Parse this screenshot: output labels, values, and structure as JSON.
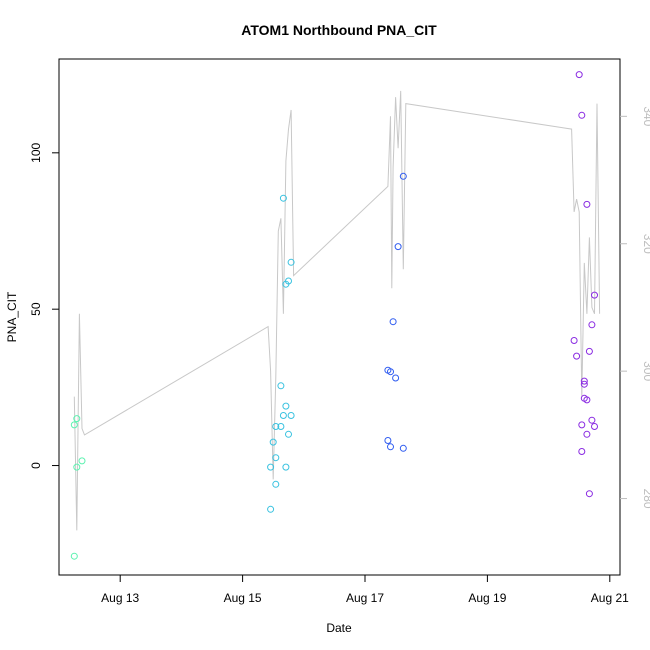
{
  "chart_data": {
    "type": "scatter",
    "title": "ATOM1 Northbound PNA_CIT",
    "xlabel": "Date",
    "ylabel": "PNA_CIT",
    "xlim": [
      "2016-08-12T00:00",
      "2016-08-21T04:00"
    ],
    "ylim": [
      -35,
      130
    ],
    "x_ticks": [
      {
        "value": "2016-08-13",
        "label": "Aug 13"
      },
      {
        "value": "2016-08-15",
        "label": "Aug 15"
      },
      {
        "value": "2016-08-17",
        "label": "Aug 17"
      },
      {
        "value": "2016-08-19",
        "label": "Aug 19"
      },
      {
        "value": "2016-08-21",
        "label": "Aug 21"
      }
    ],
    "y_ticks": [
      0,
      50,
      100
    ],
    "y2lim": [
      268,
      349
    ],
    "y2_ticks": [
      280,
      300,
      320,
      340
    ],
    "grid": false,
    "legend": "none",
    "points": [
      {
        "x": "2016-08-12T06:00",
        "y": -29,
        "color": "#5cf2b0"
      },
      {
        "x": "2016-08-12T06:00",
        "y": 13,
        "color": "#5cf2b0"
      },
      {
        "x": "2016-08-12T07:00",
        "y": -0.5,
        "color": "#5cf2b0"
      },
      {
        "x": "2016-08-12T07:00",
        "y": 15,
        "color": "#5cf2b0"
      },
      {
        "x": "2016-08-12T09:00",
        "y": 1.5,
        "color": "#5cf2b0"
      },
      {
        "x": "2016-08-15T11:00",
        "y": -14,
        "color": "#39c2e0"
      },
      {
        "x": "2016-08-15T11:00",
        "y": -0.5,
        "color": "#39c2e0"
      },
      {
        "x": "2016-08-15T12:00",
        "y": 7.5,
        "color": "#39c2e0"
      },
      {
        "x": "2016-08-15T13:00",
        "y": 12.5,
        "color": "#39c2e0"
      },
      {
        "x": "2016-08-15T13:00",
        "y": 2.5,
        "color": "#39c2e0"
      },
      {
        "x": "2016-08-15T13:00",
        "y": -6,
        "color": "#39c2e0"
      },
      {
        "x": "2016-08-15T15:00",
        "y": 25.5,
        "color": "#39c2e0"
      },
      {
        "x": "2016-08-15T15:00",
        "y": 12.5,
        "color": "#39c2e0"
      },
      {
        "x": "2016-08-15T16:00",
        "y": 85.5,
        "color": "#39c2e0"
      },
      {
        "x": "2016-08-15T16:00",
        "y": 16,
        "color": "#39c2e0"
      },
      {
        "x": "2016-08-15T17:00",
        "y": 58,
        "color": "#39c2e0"
      },
      {
        "x": "2016-08-15T17:00",
        "y": 19,
        "color": "#39c2e0"
      },
      {
        "x": "2016-08-15T17:00",
        "y": -0.5,
        "color": "#39c2e0"
      },
      {
        "x": "2016-08-15T18:00",
        "y": 59,
        "color": "#39c2e0"
      },
      {
        "x": "2016-08-15T18:00",
        "y": 10,
        "color": "#39c2e0"
      },
      {
        "x": "2016-08-15T19:00",
        "y": 65,
        "color": "#39c2e0"
      },
      {
        "x": "2016-08-15T19:00",
        "y": 16,
        "color": "#39c2e0"
      },
      {
        "x": "2016-08-17T09:00",
        "y": 30.5,
        "color": "#2f5cf0"
      },
      {
        "x": "2016-08-17T09:00",
        "y": 8,
        "color": "#2f5cf0"
      },
      {
        "x": "2016-08-17T10:00",
        "y": 30,
        "color": "#2f5cf0"
      },
      {
        "x": "2016-08-17T10:00",
        "y": 6,
        "color": "#2f5cf0"
      },
      {
        "x": "2016-08-17T11:00",
        "y": 46,
        "color": "#2f5cf0"
      },
      {
        "x": "2016-08-17T12:00",
        "y": 28,
        "color": "#2f5cf0"
      },
      {
        "x": "2016-08-17T13:00",
        "y": 70,
        "color": "#2f5cf0"
      },
      {
        "x": "2016-08-17T15:00",
        "y": 92.5,
        "color": "#2f5cf0"
      },
      {
        "x": "2016-08-17T15:00",
        "y": 5.5,
        "color": "#2f5cf0"
      },
      {
        "x": "2016-08-20T10:00",
        "y": 40,
        "color": "#8a2be2"
      },
      {
        "x": "2016-08-20T11:00",
        "y": 35,
        "color": "#8a2be2"
      },
      {
        "x": "2016-08-20T12:00",
        "y": 125,
        "color": "#8a2be2"
      },
      {
        "x": "2016-08-20T13:00",
        "y": 112,
        "color": "#8a2be2"
      },
      {
        "x": "2016-08-20T13:00",
        "y": 13,
        "color": "#8a2be2"
      },
      {
        "x": "2016-08-20T13:00",
        "y": 4.5,
        "color": "#8a2be2"
      },
      {
        "x": "2016-08-20T14:00",
        "y": 27,
        "color": "#8a2be2"
      },
      {
        "x": "2016-08-20T14:00",
        "y": 21.5,
        "color": "#8a2be2"
      },
      {
        "x": "2016-08-20T14:00",
        "y": 26,
        "color": "#8a2be2"
      },
      {
        "x": "2016-08-20T15:00",
        "y": 83.5,
        "color": "#8a2be2"
      },
      {
        "x": "2016-08-20T15:00",
        "y": 21,
        "color": "#8a2be2"
      },
      {
        "x": "2016-08-20T15:00",
        "y": 10,
        "color": "#8a2be2"
      },
      {
        "x": "2016-08-20T16:00",
        "y": 36.5,
        "color": "#8a2be2"
      },
      {
        "x": "2016-08-20T16:00",
        "y": -9,
        "color": "#8a2be2"
      },
      {
        "x": "2016-08-20T17:00",
        "y": 45,
        "color": "#8a2be2"
      },
      {
        "x": "2016-08-20T17:00",
        "y": 14.5,
        "color": "#8a2be2"
      },
      {
        "x": "2016-08-20T18:00",
        "y": 54.5,
        "color": "#8a2be2"
      },
      {
        "x": "2016-08-20T18:00",
        "y": 12.5,
        "color": "#8a2be2"
      }
    ],
    "line_series": {
      "axis": "right",
      "color": "#c8c8c8",
      "points": [
        [
          "2016-08-12T06:00",
          296
        ],
        [
          "2016-08-12T07:00",
          275
        ],
        [
          "2016-08-12T08:00",
          309
        ],
        [
          "2016-08-12T09:00",
          291
        ],
        [
          "2016-08-12T10:00",
          290
        ],
        [
          "2016-08-15T10:00",
          307
        ],
        [
          "2016-08-15T11:00",
          300
        ],
        [
          "2016-08-15T12:00",
          283
        ],
        [
          "2016-08-15T13:00",
          299
        ],
        [
          "2016-08-15T14:00",
          322
        ],
        [
          "2016-08-15T15:00",
          324
        ],
        [
          "2016-08-15T16:00",
          309
        ],
        [
          "2016-08-15T17:00",
          333
        ],
        [
          "2016-08-15T18:00",
          338
        ],
        [
          "2016-08-15T19:00",
          341
        ],
        [
          "2016-08-15T20:00",
          315
        ],
        [
          "2016-08-17T09:00",
          329
        ],
        [
          "2016-08-17T10:00",
          340
        ],
        [
          "2016-08-17T10:30",
          313
        ],
        [
          "2016-08-17T11:00",
          332
        ],
        [
          "2016-08-17T12:00",
          343
        ],
        [
          "2016-08-17T13:00",
          335
        ],
        [
          "2016-08-17T14:00",
          344
        ],
        [
          "2016-08-17T15:00",
          316
        ],
        [
          "2016-08-17T16:00",
          342
        ],
        [
          "2016-08-20T09:00",
          338
        ],
        [
          "2016-08-20T10:00",
          325
        ],
        [
          "2016-08-20T11:00",
          327
        ],
        [
          "2016-08-20T12:00",
          325
        ],
        [
          "2016-08-20T13:00",
          296
        ],
        [
          "2016-08-20T14:00",
          317
        ],
        [
          "2016-08-20T15:00",
          309
        ],
        [
          "2016-08-20T16:00",
          321
        ],
        [
          "2016-08-20T17:00",
          310
        ],
        [
          "2016-08-20T18:00",
          309
        ],
        [
          "2016-08-20T19:00",
          342
        ],
        [
          "2016-08-20T20:00",
          309
        ]
      ]
    }
  }
}
